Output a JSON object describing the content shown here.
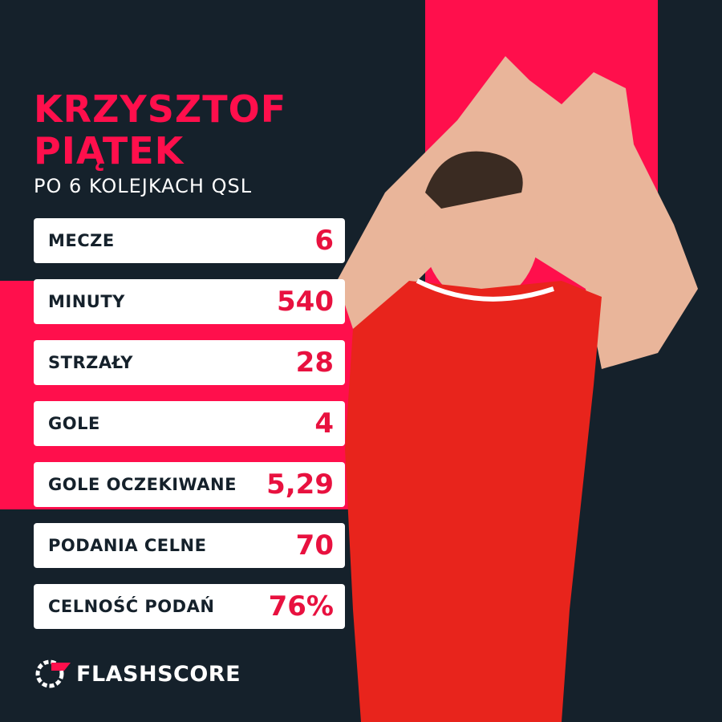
{
  "header": {
    "title_lines": [
      "KRZYSZTOF",
      "PIĄTEK"
    ],
    "subtitle": "PO 6 KOLEJKACH QSL"
  },
  "stats": [
    {
      "label": "MECZE",
      "value": "6"
    },
    {
      "label": "MINUTY",
      "value": "540"
    },
    {
      "label": "STRZAŁY",
      "value": "28"
    },
    {
      "label": "GOLE",
      "value": "4"
    },
    {
      "label": "GOLE OCZEKIWANE",
      "value": "5,29"
    },
    {
      "label": "PODANIA CELNE",
      "value": "70"
    },
    {
      "label": "CELNOŚĆ PODAŃ",
      "value": "76%"
    }
  ],
  "brand": "FLASHSCORE"
}
